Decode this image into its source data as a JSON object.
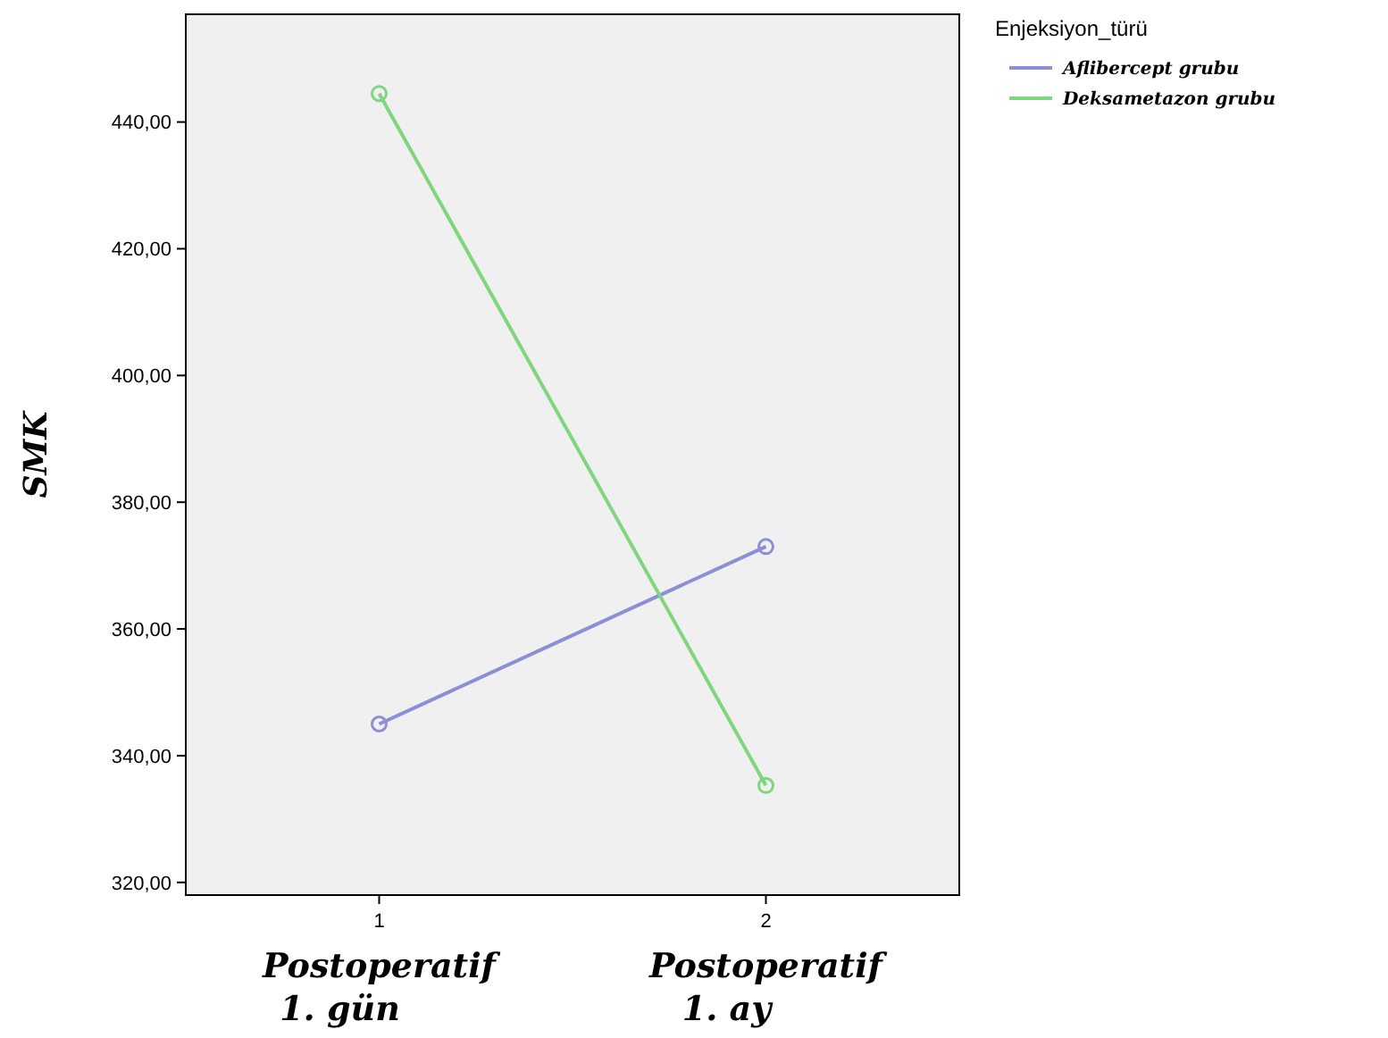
{
  "chart_data": {
    "type": "line",
    "ylabel": "SMK",
    "legend_title": "Enjeksiyon_türü",
    "legend": "top right",
    "marker": "circle",
    "line_style": "solid",
    "grid": false,
    "x": [
      1,
      2
    ],
    "xlim": [
      0.5,
      2.5
    ],
    "xticks": [
      1,
      2
    ],
    "ylim": [
      318,
      457
    ],
    "yticks": [
      {
        "value": 320,
        "label": "320,00"
      },
      {
        "value": 340,
        "label": "340,00"
      },
      {
        "value": 360,
        "label": "360,00"
      },
      {
        "value": 380,
        "label": "380,00"
      },
      {
        "value": 400,
        "label": "400,00"
      },
      {
        "value": 420,
        "label": "420,00"
      },
      {
        "value": 440,
        "label": "440,00"
      }
    ],
    "series": [
      {
        "name": "Aflibercept grubu",
        "color": "#8c8fd6",
        "values": [
          345,
          373
        ]
      },
      {
        "name": "Deksametazon grubu",
        "color": "#7fd67f",
        "values": [
          444.5,
          335.3
        ]
      }
    ],
    "annotations": [
      "Postoperatif\n1. gün",
      "Postoperatif\n1. ay"
    ]
  }
}
